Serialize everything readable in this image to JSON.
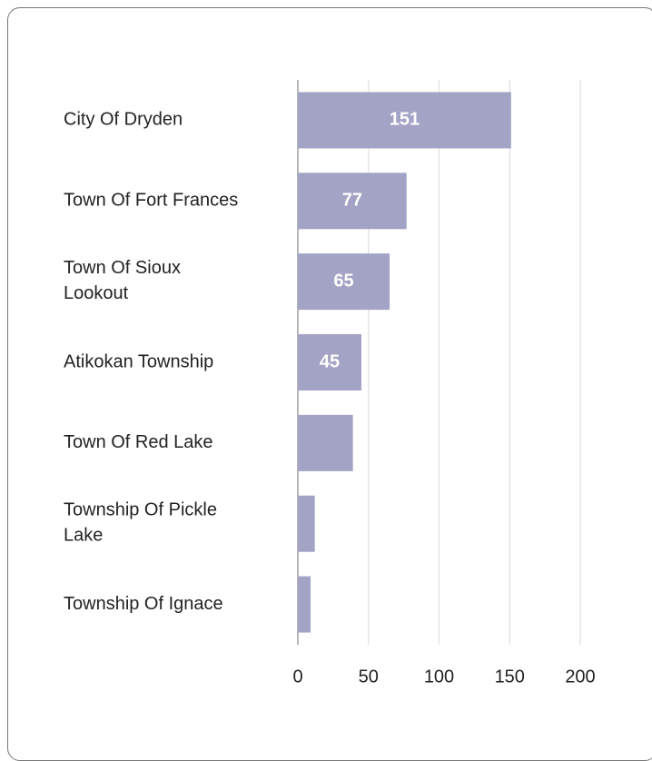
{
  "chart_data": {
    "type": "bar",
    "orientation": "horizontal",
    "categories": [
      "City Of Dryden",
      "Town Of Fort Frances",
      "Town Of Sioux Lookout",
      "Atikokan Township",
      "Town Of Red Lake",
      "Township Of Pickle Lake",
      "Township Of Ignace"
    ],
    "values": [
      151,
      77,
      65,
      45,
      39,
      12,
      9
    ],
    "value_labels": [
      "151",
      "77",
      "65",
      "45",
      null,
      null,
      null
    ],
    "color": "#a3a3c6",
    "xlim": [
      0,
      200
    ],
    "xticks": [
      0,
      50,
      100,
      150,
      200
    ],
    "grid": true
  }
}
